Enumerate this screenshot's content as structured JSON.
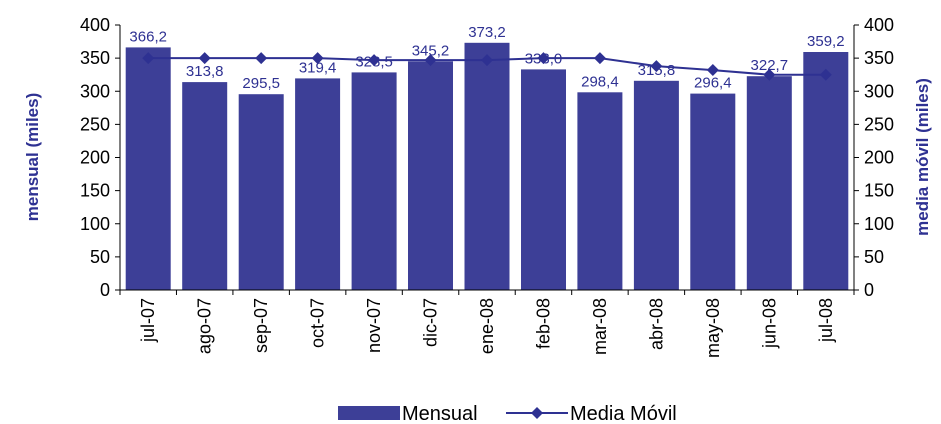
{
  "chart_data": {
    "type": "bar",
    "categories": [
      "jul-07",
      "ago-07",
      "sep-07",
      "oct-07",
      "nov-07",
      "dic-07",
      "ene-08",
      "feb-08",
      "mar-08",
      "abr-08",
      "may-08",
      "jun-08",
      "jul-08"
    ],
    "series": [
      {
        "name": "Mensual",
        "type": "bar",
        "color": "#3d3f97",
        "values": [
          366.2,
          313.8,
          295.5,
          319.4,
          328.5,
          345.2,
          373.2,
          333.0,
          298.4,
          315.8,
          296.4,
          322.7,
          359.2
        ],
        "labels": [
          "366,2",
          "313,8",
          "295,5",
          "319,4",
          "328,5",
          "345,2",
          "373,2",
          "333,0",
          "298,4",
          "315,8",
          "296,4",
          "322,7",
          "359,2"
        ]
      },
      {
        "name": "Media Móvil",
        "type": "line",
        "color": "#2e3192",
        "values": [
          350,
          350,
          350,
          350,
          347,
          347,
          347,
          350,
          350,
          338,
          332,
          325,
          325
        ]
      }
    ],
    "ylabel": "mensual (miles)",
    "y2label": "media móvil (miles)",
    "ylim": [
      0,
      400
    ],
    "y2lim": [
      0,
      400
    ],
    "yticks": [
      0,
      50,
      100,
      150,
      200,
      250,
      300,
      350,
      400
    ],
    "grid": false,
    "legend": "bottom"
  }
}
